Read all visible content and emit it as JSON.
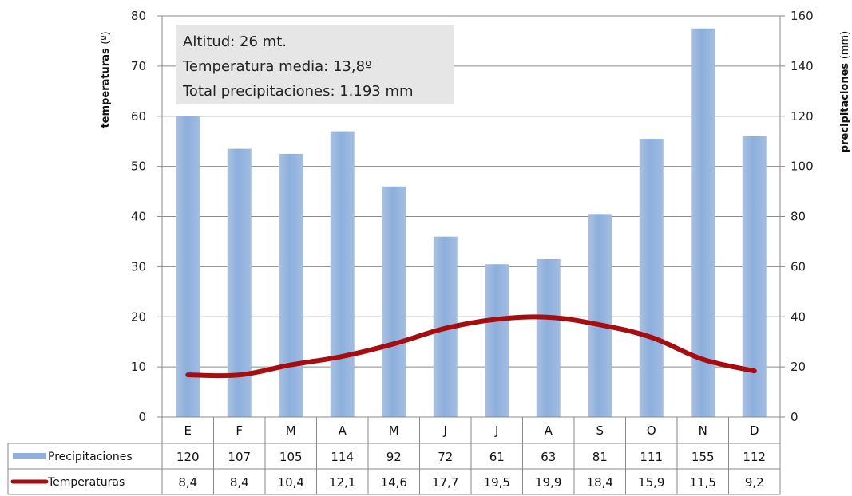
{
  "chart_data": {
    "type": "bar",
    "categories": [
      "E",
      "F",
      "M",
      "A",
      "M",
      "J",
      "J",
      "A",
      "S",
      "O",
      "N",
      "D"
    ],
    "series": [
      {
        "name": "Precipitaciones",
        "chart_type": "bar",
        "axis": "right",
        "color": "#8fb0dc",
        "values": [
          120,
          107,
          105,
          114,
          92,
          72,
          61,
          63,
          81,
          111,
          155,
          112
        ],
        "labels": [
          "120",
          "107",
          "105",
          "114",
          "92",
          "72",
          "61",
          "63",
          "81",
          "111",
          "155",
          "112"
        ]
      },
      {
        "name": "Temperaturas",
        "chart_type": "line",
        "axis": "left",
        "color": "#a50e10",
        "values": [
          8.4,
          8.4,
          10.4,
          12.1,
          14.6,
          17.7,
          19.5,
          19.9,
          18.4,
          15.9,
          11.5,
          9.2
        ],
        "labels": [
          "8,4",
          "8,4",
          "10,4",
          "12,1",
          "14,6",
          "17,7",
          "19,5",
          "19,9",
          "18,4",
          "15,9",
          "11,5",
          "9,2"
        ]
      }
    ],
    "y_left": {
      "label": "temperaturas",
      "unit": "(º)",
      "ylim": [
        0,
        80
      ],
      "ticks": [
        "0",
        "10",
        "20",
        "30",
        "40",
        "50",
        "60",
        "70",
        "80"
      ]
    },
    "y_right": {
      "label": "precipitaciones",
      "unit": "(mm)",
      "ylim": [
        0,
        160
      ],
      "ticks": [
        "0",
        "20",
        "40",
        "60",
        "80",
        "100",
        "120",
        "140",
        "160"
      ]
    },
    "grid": true,
    "legend": "data table below chart",
    "annotations": [
      "Altitud: 26 mt.",
      "Temperatura media: 13,8º",
      "Total precipitaciones: 1.193 mm"
    ]
  }
}
